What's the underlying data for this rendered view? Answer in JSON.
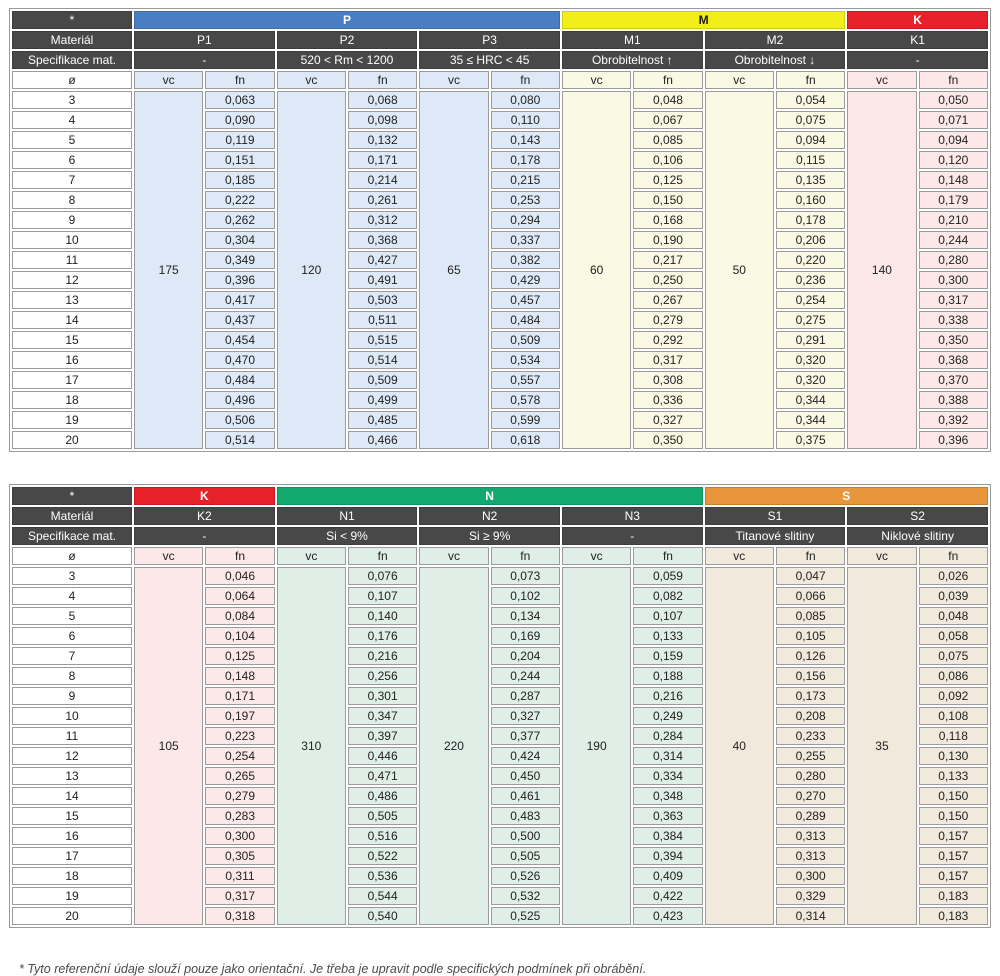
{
  "labels": {
    "star": "*",
    "material_row": "Materiál",
    "spec_row": "Specifikace mat.",
    "diameter": "ø",
    "vc": "vc",
    "fn": "fn"
  },
  "colors": {
    "header_dark": "#484848",
    "groups": {
      "P": "#4a7dc4",
      "M": "#f2ee19",
      "K": "#e62129",
      "N": "#12a96e",
      "S": "#e7963c"
    },
    "group_text": {
      "P": "#ffffff",
      "M": "#1a1a1a",
      "K": "#ffffff",
      "N": "#ffffff",
      "S": "#ffffff"
    },
    "tints": {
      "P": "#dde9f6",
      "M": "#f9f9e4",
      "K": "#fce8e8",
      "N": "#dfeee6",
      "S": "#f1e9db"
    }
  },
  "diameters": [
    "3",
    "4",
    "5",
    "6",
    "7",
    "8",
    "9",
    "10",
    "11",
    "12",
    "13",
    "14",
    "15",
    "16",
    "17",
    "18",
    "19",
    "20"
  ],
  "tables": [
    {
      "groups": [
        {
          "label": "P",
          "key": "P",
          "span": 3
        },
        {
          "label": "M",
          "key": "M",
          "span": 2
        },
        {
          "label": "K",
          "key": "K",
          "span": 1
        }
      ],
      "columns": [
        {
          "name": "P1",
          "group": "P",
          "spec": "-",
          "vc": "175",
          "fn": [
            "0,063",
            "0,090",
            "0,119",
            "0,151",
            "0,185",
            "0,222",
            "0,262",
            "0,304",
            "0,349",
            "0,396",
            "0,417",
            "0,437",
            "0,454",
            "0,470",
            "0,484",
            "0,496",
            "0,506",
            "0,514"
          ]
        },
        {
          "name": "P2",
          "group": "P",
          "spec": "520 < Rm < 1200",
          "vc": "120",
          "fn": [
            "0,068",
            "0,098",
            "0,132",
            "0,171",
            "0,214",
            "0,261",
            "0,312",
            "0,368",
            "0,427",
            "0,491",
            "0,503",
            "0,511",
            "0,515",
            "0,514",
            "0,509",
            "0,499",
            "0,485",
            "0,466"
          ]
        },
        {
          "name": "P3",
          "group": "P",
          "spec": "35 ≤ HRC < 45",
          "vc": "65",
          "fn": [
            "0,080",
            "0,110",
            "0,143",
            "0,178",
            "0,215",
            "0,253",
            "0,294",
            "0,337",
            "0,382",
            "0,429",
            "0,457",
            "0,484",
            "0,509",
            "0,534",
            "0,557",
            "0,578",
            "0,599",
            "0,618"
          ]
        },
        {
          "name": "M1",
          "group": "M",
          "spec": "Obrobitelnost ↑",
          "vc": "60",
          "fn": [
            "0,048",
            "0,067",
            "0,085",
            "0,106",
            "0,125",
            "0,150",
            "0,168",
            "0,190",
            "0,217",
            "0,250",
            "0,267",
            "0,279",
            "0,292",
            "0,317",
            "0,308",
            "0,336",
            "0,327",
            "0,350"
          ]
        },
        {
          "name": "M2",
          "group": "M",
          "spec": "Obrobitelnost ↓",
          "vc": "50",
          "fn": [
            "0,054",
            "0,075",
            "0,094",
            "0,115",
            "0,135",
            "0,160",
            "0,178",
            "0,206",
            "0,220",
            "0,236",
            "0,254",
            "0,275",
            "0,291",
            "0,320",
            "0,320",
            "0,344",
            "0,344",
            "0,375"
          ]
        },
        {
          "name": "K1",
          "group": "K",
          "spec": "-",
          "vc": "140",
          "fn": [
            "0,050",
            "0,071",
            "0,094",
            "0,120",
            "0,148",
            "0,179",
            "0,210",
            "0,244",
            "0,280",
            "0,300",
            "0,317",
            "0,338",
            "0,350",
            "0,368",
            "0,370",
            "0,388",
            "0,392",
            "0,396"
          ]
        }
      ]
    },
    {
      "groups": [
        {
          "label": "K",
          "key": "K",
          "span": 1
        },
        {
          "label": "N",
          "key": "N",
          "span": 3
        },
        {
          "label": "S",
          "key": "S",
          "span": 2
        }
      ],
      "columns": [
        {
          "name": "K2",
          "group": "K",
          "spec": "-",
          "vc": "105",
          "fn": [
            "0,046",
            "0,064",
            "0,084",
            "0,104",
            "0,125",
            "0,148",
            "0,171",
            "0,197",
            "0,223",
            "0,254",
            "0,265",
            "0,279",
            "0,283",
            "0,300",
            "0,305",
            "0,311",
            "0,317",
            "0,318"
          ]
        },
        {
          "name": "N1",
          "group": "N",
          "spec": "Si < 9%",
          "vc": "310",
          "fn": [
            "0,076",
            "0,107",
            "0,140",
            "0,176",
            "0,216",
            "0,256",
            "0,301",
            "0,347",
            "0,397",
            "0,446",
            "0,471",
            "0,486",
            "0,505",
            "0,516",
            "0,522",
            "0,536",
            "0,544",
            "0,540"
          ]
        },
        {
          "name": "N2",
          "group": "N",
          "spec": "Si ≥ 9%",
          "vc": "220",
          "fn": [
            "0,073",
            "0,102",
            "0,134",
            "0,169",
            "0,204",
            "0,244",
            "0,287",
            "0,327",
            "0,377",
            "0,424",
            "0,450",
            "0,461",
            "0,483",
            "0,500",
            "0,505",
            "0,526",
            "0,532",
            "0,525"
          ]
        },
        {
          "name": "N3",
          "group": "N",
          "spec": "-",
          "vc": "190",
          "fn": [
            "0,059",
            "0,082",
            "0,107",
            "0,133",
            "0,159",
            "0,188",
            "0,216",
            "0,249",
            "0,284",
            "0,314",
            "0,334",
            "0,348",
            "0,363",
            "0,384",
            "0,394",
            "0,409",
            "0,422",
            "0,423"
          ]
        },
        {
          "name": "S1",
          "group": "S",
          "spec": "Titanové slitiny",
          "vc": "40",
          "fn": [
            "0,047",
            "0,066",
            "0,085",
            "0,105",
            "0,126",
            "0,156",
            "0,173",
            "0,208",
            "0,233",
            "0,255",
            "0,280",
            "0,270",
            "0,289",
            "0,313",
            "0,313",
            "0,300",
            "0,329",
            "0,314"
          ]
        },
        {
          "name": "S2",
          "group": "S",
          "spec": "Niklové slitiny",
          "vc": "35",
          "fn": [
            "0,026",
            "0,039",
            "0,048",
            "0,058",
            "0,075",
            "0,086",
            "0,092",
            "0,108",
            "0,118",
            "0,130",
            "0,133",
            "0,150",
            "0,150",
            "0,157",
            "0,157",
            "0,157",
            "0,183",
            "0,183"
          ]
        }
      ]
    }
  ],
  "footnote": "* Tyto referenční údaje slouží pouze jako orientační. Je třeba je upravit podle specifických podmínek při obrábění."
}
